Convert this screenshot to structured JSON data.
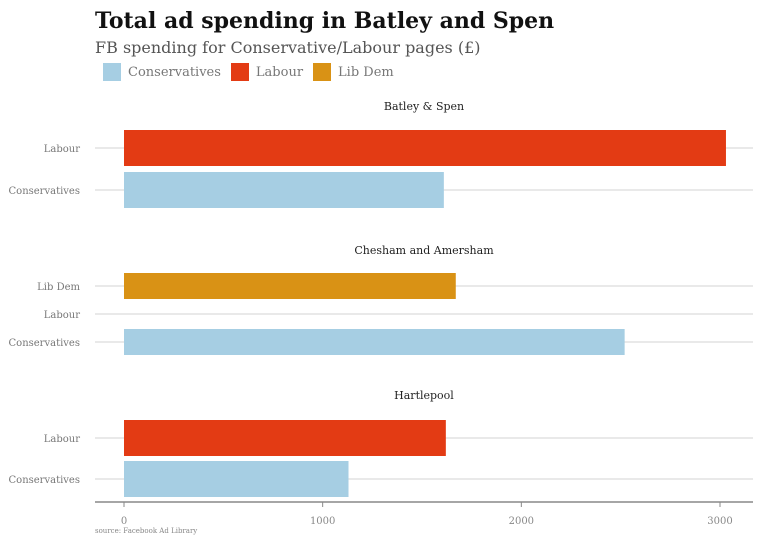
{
  "chart_data": {
    "type": "bar",
    "orientation": "horizontal",
    "title": "Total ad spending in Batley and Spen",
    "subtitle": "FB spending for Conservative/Labour pages (£)",
    "legend": {
      "placement": "top-left",
      "entries": [
        {
          "name": "Conservatives",
          "color": "#a6cee3"
        },
        {
          "name": "Labour",
          "color": "#e33b14"
        },
        {
          "name": "Lib Dem",
          "color": "#d99215"
        }
      ]
    },
    "xlim": [
      0,
      3150
    ],
    "x_ticks": [
      0,
      1000,
      2000,
      3000
    ],
    "x_tick_labels": [
      "0",
      "1000",
      "2000",
      "3000"
    ],
    "grid": true,
    "panels": [
      {
        "title": "Batley & Spen",
        "bars": [
          {
            "category": "Labour",
            "value": 3030
          },
          {
            "category": "Conservatives",
            "value": 1610
          }
        ]
      },
      {
        "title": "Chesham and Amersham",
        "bars": [
          {
            "category": "Lib Dem",
            "value": 1670
          },
          {
            "category": "Labour",
            "value": null
          },
          {
            "category": "Conservatives",
            "value": 2520
          }
        ]
      },
      {
        "title": "Hartlepool",
        "bars": [
          {
            "category": "Labour",
            "value": 1620
          },
          {
            "category": "Conservatives",
            "value": 1130
          }
        ]
      }
    ],
    "source": "source: Facebook Ad Library"
  }
}
